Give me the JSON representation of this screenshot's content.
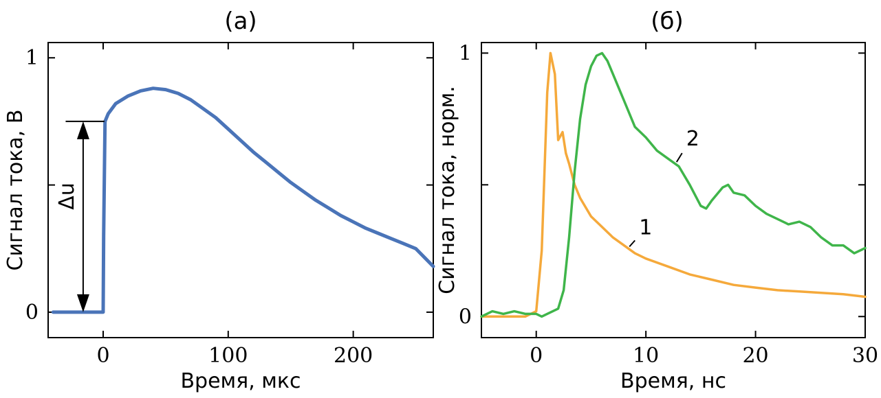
{
  "chart_data": [
    {
      "type": "line",
      "title": "(a)",
      "xlabel": "Время, мкс",
      "ylabel": "Сигнал тока, В",
      "xlim": [
        -44,
        264
      ],
      "ylim": [
        -0.1,
        1.06
      ],
      "x_ticks": [
        0,
        100,
        200
      ],
      "y_ticks": [
        0,
        0.5,
        1
      ],
      "y_tick_labels": [
        "0",
        "",
        "1"
      ],
      "annotation": {
        "label": "Δu",
        "from": 0,
        "to": 0.75
      },
      "series": [
        {
          "color": "#4a74b8",
          "x": [
            -40,
            -20,
            0,
            0.4,
            1.5,
            4,
            10,
            20,
            30,
            40,
            50,
            60,
            70,
            80,
            90,
            100,
            110,
            120,
            130,
            140,
            150,
            160,
            170,
            180,
            190,
            200,
            210,
            220,
            230,
            240,
            250,
            264
          ],
          "y": [
            0,
            0,
            0,
            0.3,
            0.75,
            0.78,
            0.82,
            0.85,
            0.87,
            0.88,
            0.875,
            0.86,
            0.835,
            0.8,
            0.765,
            0.72,
            0.675,
            0.63,
            0.59,
            0.55,
            0.51,
            0.475,
            0.44,
            0.41,
            0.38,
            0.355,
            0.33,
            0.31,
            0.29,
            0.27,
            0.25,
            0.18
          ]
        }
      ]
    },
    {
      "type": "line",
      "title": "(б)",
      "xlabel": "Время, нс",
      "ylabel": "Сигнал тока, норм.",
      "xlim": [
        -5,
        30
      ],
      "ylim": [
        -0.08,
        1.04
      ],
      "x_ticks": [
        0,
        10,
        20,
        30
      ],
      "y_ticks": [
        0,
        0.5,
        1
      ],
      "y_tick_labels": [
        "0",
        "",
        "1"
      ],
      "series": [
        {
          "name": "1",
          "color": "#f5a93b",
          "x": [
            -5,
            -1,
            0,
            0.5,
            1,
            1.3,
            1.7,
            2.0,
            2.4,
            2.7,
            3,
            3.5,
            4,
            5,
            6,
            7,
            8,
            9,
            10,
            12,
            14,
            16,
            18,
            20,
            22,
            24,
            26,
            28,
            30
          ],
          "y": [
            0,
            0,
            0.02,
            0.25,
            0.85,
            1.0,
            0.92,
            0.67,
            0.7,
            0.62,
            0.58,
            0.5,
            0.45,
            0.38,
            0.34,
            0.3,
            0.27,
            0.24,
            0.22,
            0.19,
            0.16,
            0.14,
            0.12,
            0.11,
            0.1,
            0.095,
            0.09,
            0.085,
            0.075
          ]
        },
        {
          "name": "2",
          "color": "#3fb54a",
          "x": [
            -5,
            -4,
            -3,
            -2,
            -1,
            0,
            0.5,
            1,
            2,
            2.5,
            3,
            3.5,
            4,
            4.5,
            5,
            5.5,
            6,
            6.5,
            7,
            8,
            9,
            10,
            11,
            12,
            13,
            14,
            15,
            15.5,
            16,
            17,
            17.5,
            18,
            19,
            20,
            21,
            22,
            23,
            24,
            25,
            26,
            27,
            28,
            29,
            30
          ],
          "y": [
            0,
            0.02,
            0.01,
            0.02,
            0.01,
            0.01,
            0,
            0.01,
            0.03,
            0.1,
            0.3,
            0.55,
            0.75,
            0.88,
            0.95,
            0.99,
            1.0,
            0.97,
            0.92,
            0.82,
            0.72,
            0.68,
            0.63,
            0.6,
            0.57,
            0.5,
            0.42,
            0.41,
            0.44,
            0.49,
            0.5,
            0.47,
            0.46,
            0.42,
            0.39,
            0.37,
            0.35,
            0.36,
            0.34,
            0.3,
            0.27,
            0.27,
            0.24,
            0.26
          ]
        }
      ]
    }
  ]
}
